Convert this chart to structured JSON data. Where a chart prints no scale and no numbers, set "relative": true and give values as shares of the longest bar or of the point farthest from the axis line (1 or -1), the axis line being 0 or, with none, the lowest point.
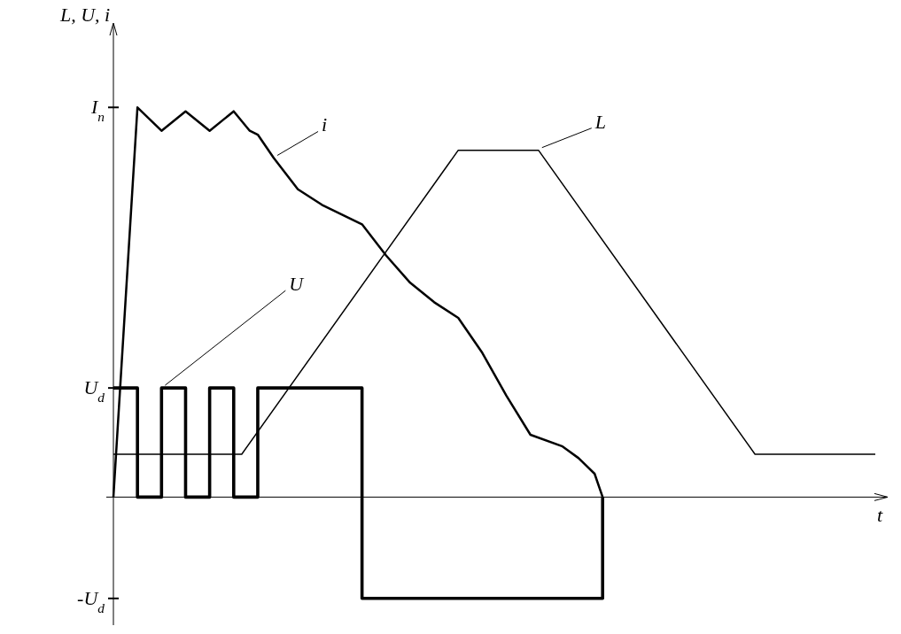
{
  "chart_data": {
    "type": "line",
    "relative": true,
    "ylabel": "L, U, i",
    "xlabel": "t",
    "categories": [
      null,
      null,
      null,
      null,
      null,
      null,
      null,
      null,
      null,
      null,
      null,
      null,
      null,
      null,
      null,
      null,
      null,
      null,
      null,
      null,
      null,
      null,
      null,
      null,
      null,
      null,
      null,
      null,
      null,
      null,
      null,
      null,
      null,
      null,
      null,
      null,
      null,
      null,
      null,
      null,
      null,
      null,
      null,
      null,
      null,
      null,
      null,
      null,
      null,
      null,
      null,
      null,
      null,
      null,
      null,
      null,
      null,
      null,
      null,
      null,
      null,
      null,
      null,
      null,
      null,
      null,
      null,
      null,
      null,
      null,
      null,
      null,
      null,
      null,
      null,
      null,
      null,
      null,
      null,
      null,
      null,
      null,
      null,
      null,
      null,
      null,
      null,
      null,
      null,
      null,
      null,
      null,
      null,
      null,
      null,
      null
    ],
    "series": [
      {
        "name": "i",
        "type": "line",
        "color": "#000000",
        "values": [
          0,
          null,
          null,
          1.0,
          null,
          null,
          0.94,
          null,
          null,
          0.99,
          null,
          null,
          0.94,
          null,
          null,
          0.99,
          null,
          0.94,
          0.93,
          null,
          0.87,
          null,
          null,
          0.79,
          null,
          null,
          0.75,
          null,
          null,
          null,
          null,
          0.7,
          null,
          null,
          0.62,
          null,
          null,
          0.55,
          null,
          null,
          0.5,
          null,
          null,
          0.46,
          null,
          null,
          0.37,
          null,
          null,
          0.26,
          null,
          null,
          0.16,
          null,
          null,
          null,
          0.13,
          null,
          0.1,
          null,
          0.06,
          0,
          null,
          null,
          null,
          null,
          null,
          null,
          null,
          null,
          null,
          null,
          null,
          null,
          null,
          null,
          null,
          null,
          null,
          null,
          null,
          null,
          null,
          null,
          null,
          null,
          null,
          null,
          null,
          null,
          null,
          null,
          null,
          null,
          null,
          null
        ]
      },
      {
        "name": "U",
        "type": "step",
        "color": "#000000",
        "values": [
          0.28,
          null,
          null,
          0,
          null,
          null,
          0.28,
          null,
          null,
          0,
          null,
          null,
          0.28,
          null,
          null,
          0,
          null,
          null,
          0.28,
          null,
          null,
          null,
          null,
          null,
          null,
          null,
          null,
          null,
          null,
          null,
          null,
          -0.26,
          null,
          null,
          null,
          null,
          null,
          null,
          null,
          null,
          null,
          null,
          null,
          null,
          null,
          null,
          null,
          null,
          null,
          null,
          null,
          null,
          null,
          null,
          null,
          null,
          null,
          null,
          null,
          null,
          null,
          0,
          null,
          null,
          null,
          null,
          null,
          null,
          null,
          null,
          null,
          null,
          null,
          null,
          null,
          null,
          null,
          null,
          null,
          null,
          null,
          null,
          null,
          null,
          null,
          null,
          null,
          null,
          null,
          null,
          null,
          null,
          null,
          null,
          null,
          null
        ]
      },
      {
        "name": "L",
        "type": "line",
        "color": "#000000",
        "values": [
          0.11,
          null,
          null,
          null,
          null,
          null,
          null,
          null,
          null,
          null,
          null,
          null,
          null,
          null,
          null,
          null,
          0.11,
          null,
          null,
          null,
          null,
          null,
          null,
          null,
          null,
          null,
          null,
          null,
          null,
          null,
          null,
          null,
          null,
          null,
          null,
          null,
          null,
          null,
          null,
          null,
          null,
          null,
          null,
          0.89,
          null,
          null,
          null,
          null,
          null,
          null,
          null,
          null,
          null,
          0.89,
          null,
          null,
          null,
          null,
          null,
          null,
          null,
          null,
          null,
          null,
          null,
          null,
          null,
          null,
          null,
          null,
          null,
          null,
          null,
          null,
          null,
          null,
          null,
          null,
          null,
          null,
          0.11,
          null,
          null,
          null,
          null,
          null,
          null,
          null,
          null,
          null,
          null,
          null,
          null,
          null,
          null,
          0.11
        ]
      }
    ],
    "annotations": [
      "I$_{п}$",
      "U$_{d}$",
      "-U$_{d}$"
    ],
    "grid": false,
    "legend": false,
    "marker": "none",
    "line_style": "solid"
  }
}
